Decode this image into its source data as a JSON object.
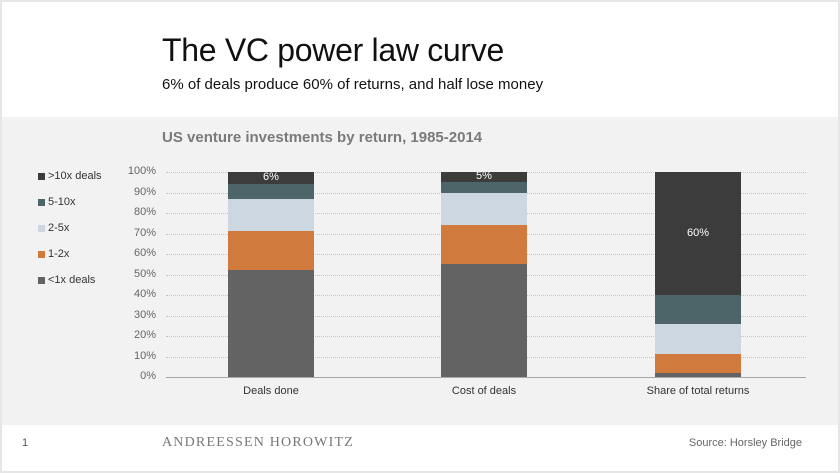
{
  "slide": {
    "title": "The VC power law curve",
    "subtitle": "6% of deals produce 60% of returns, and half lose money",
    "page_number": "1",
    "brand": "ANDREESSEN HOROWITZ",
    "source": "Source: Horsley Bridge"
  },
  "chart_data": {
    "type": "bar",
    "stacked": true,
    "title": "US venture investments by return, 1985-2014",
    "xlabel": "",
    "ylabel": "",
    "ylim": [
      0,
      100
    ],
    "y_ticks": [
      "0%",
      "10%",
      "20%",
      "30%",
      "40%",
      "50%",
      "60%",
      "70%",
      "80%",
      "90%",
      "100%"
    ],
    "grid": true,
    "legend_position": "left",
    "categories": [
      "Deals done",
      "Cost of deals",
      "Share of total returns"
    ],
    "series": [
      {
        "name": "<1x deals",
        "color": "#636363",
        "values": [
          52,
          55,
          2
        ]
      },
      {
        "name": "1-2x",
        "color": "#d17a3e",
        "values": [
          19,
          19,
          9
        ]
      },
      {
        "name": "2-5x",
        "color": "#cdd7e2",
        "values": [
          16,
          16,
          15
        ]
      },
      {
        "name": "5-10x",
        "color": "#4d6468",
        "values": [
          7,
          5,
          14
        ]
      },
      {
        "name": ">10x deals",
        "color": "#3c3c3c",
        "values": [
          6,
          5,
          60
        ]
      }
    ],
    "legend_order": [
      ">10x deals",
      "5-10x",
      "2-5x",
      "1-2x",
      "<1x deals"
    ],
    "annotations": [
      {
        "category": "Deals done",
        "series": ">10x deals",
        "text": "6%"
      },
      {
        "category": "Cost of deals",
        "series": ">10x deals",
        "text": "5%"
      },
      {
        "category": "Share of total returns",
        "series": ">10x deals",
        "text": "60%"
      }
    ]
  }
}
